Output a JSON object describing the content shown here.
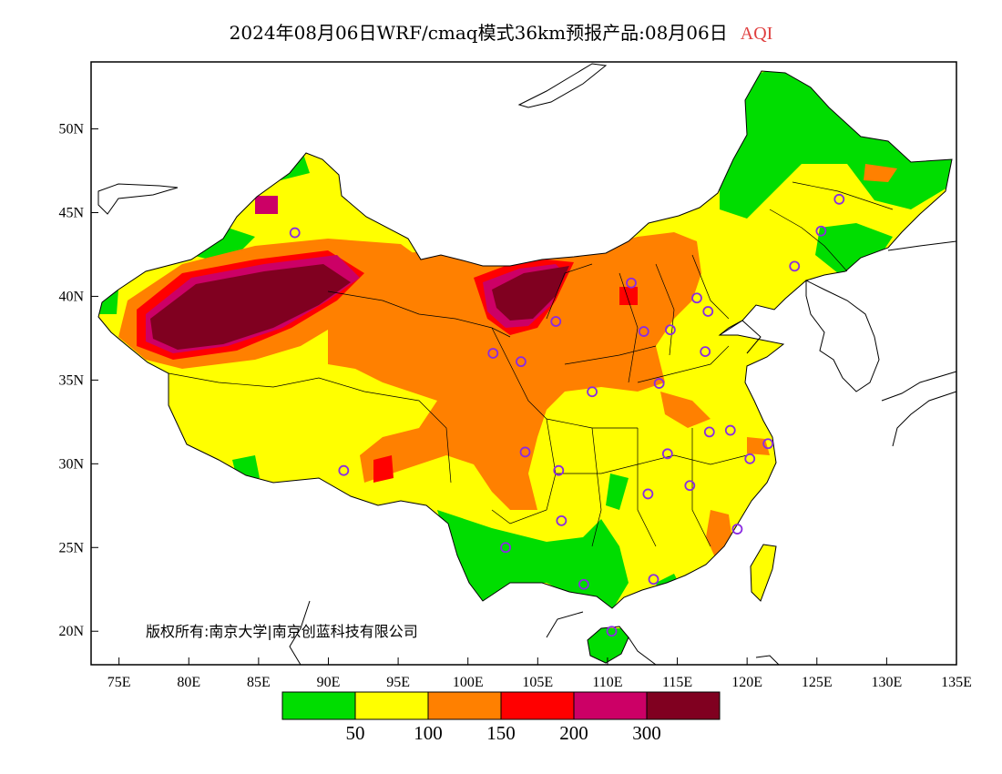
{
  "title": {
    "main": "2024年08月06日WRF/cmaq模式36km预报产品:08月06日",
    "variable": "AQI",
    "variable_color": "#e04040"
  },
  "map": {
    "lon_range": [
      73,
      135
    ],
    "lat_range": [
      18,
      54
    ],
    "lon_ticks": [
      "75E",
      "80E",
      "85E",
      "90E",
      "95E",
      "100E",
      "105E",
      "110E",
      "115E",
      "120E",
      "125E",
      "130E",
      "135E"
    ],
    "lat_ticks": [
      "20N",
      "25N",
      "30N",
      "35N",
      "40N",
      "45N",
      "50N"
    ],
    "copyright": "版权所有:南京大学|南京创蓝科技有限公司",
    "station_marker_color": "#8a2be2",
    "ocean_color": "#ffffff"
  },
  "legend": {
    "colors": [
      "#00dd00",
      "#ffff00",
      "#ff8000",
      "#ff0000",
      "#cc0066",
      "#800020"
    ],
    "labels": [
      "50",
      "100",
      "150",
      "200",
      "300"
    ],
    "categories": [
      "0-50",
      "50-100",
      "100-150",
      "150-200",
      "200-300",
      ">300"
    ]
  },
  "stations": [
    {
      "lon": 87.6,
      "lat": 43.8
    },
    {
      "lon": 91.1,
      "lat": 29.6
    },
    {
      "lon": 101.8,
      "lat": 36.6
    },
    {
      "lon": 103.8,
      "lat": 36.1
    },
    {
      "lon": 106.3,
      "lat": 38.5
    },
    {
      "lon": 111.7,
      "lat": 40.8
    },
    {
      "lon": 112.6,
      "lat": 37.9
    },
    {
      "lon": 114.5,
      "lat": 38.0
    },
    {
      "lon": 116.4,
      "lat": 39.9
    },
    {
      "lon": 117.2,
      "lat": 39.1
    },
    {
      "lon": 117.0,
      "lat": 36.7
    },
    {
      "lon": 113.7,
      "lat": 34.8
    },
    {
      "lon": 108.9,
      "lat": 34.3
    },
    {
      "lon": 104.1,
      "lat": 30.7
    },
    {
      "lon": 106.5,
      "lat": 29.6
    },
    {
      "lon": 106.7,
      "lat": 26.6
    },
    {
      "lon": 102.7,
      "lat": 25.0
    },
    {
      "lon": 108.3,
      "lat": 22.8
    },
    {
      "lon": 113.3,
      "lat": 23.1
    },
    {
      "lon": 110.3,
      "lat": 20.0
    },
    {
      "lon": 114.3,
      "lat": 30.6
    },
    {
      "lon": 112.9,
      "lat": 28.2
    },
    {
      "lon": 115.9,
      "lat": 28.7
    },
    {
      "lon": 117.3,
      "lat": 31.9
    },
    {
      "lon": 118.8,
      "lat": 32.0
    },
    {
      "lon": 120.2,
      "lat": 30.3
    },
    {
      "lon": 121.5,
      "lat": 31.2
    },
    {
      "lon": 119.3,
      "lat": 26.1
    },
    {
      "lon": 123.4,
      "lat": 41.8
    },
    {
      "lon": 125.3,
      "lat": 43.9
    },
    {
      "lon": 126.6,
      "lat": 45.8
    }
  ]
}
